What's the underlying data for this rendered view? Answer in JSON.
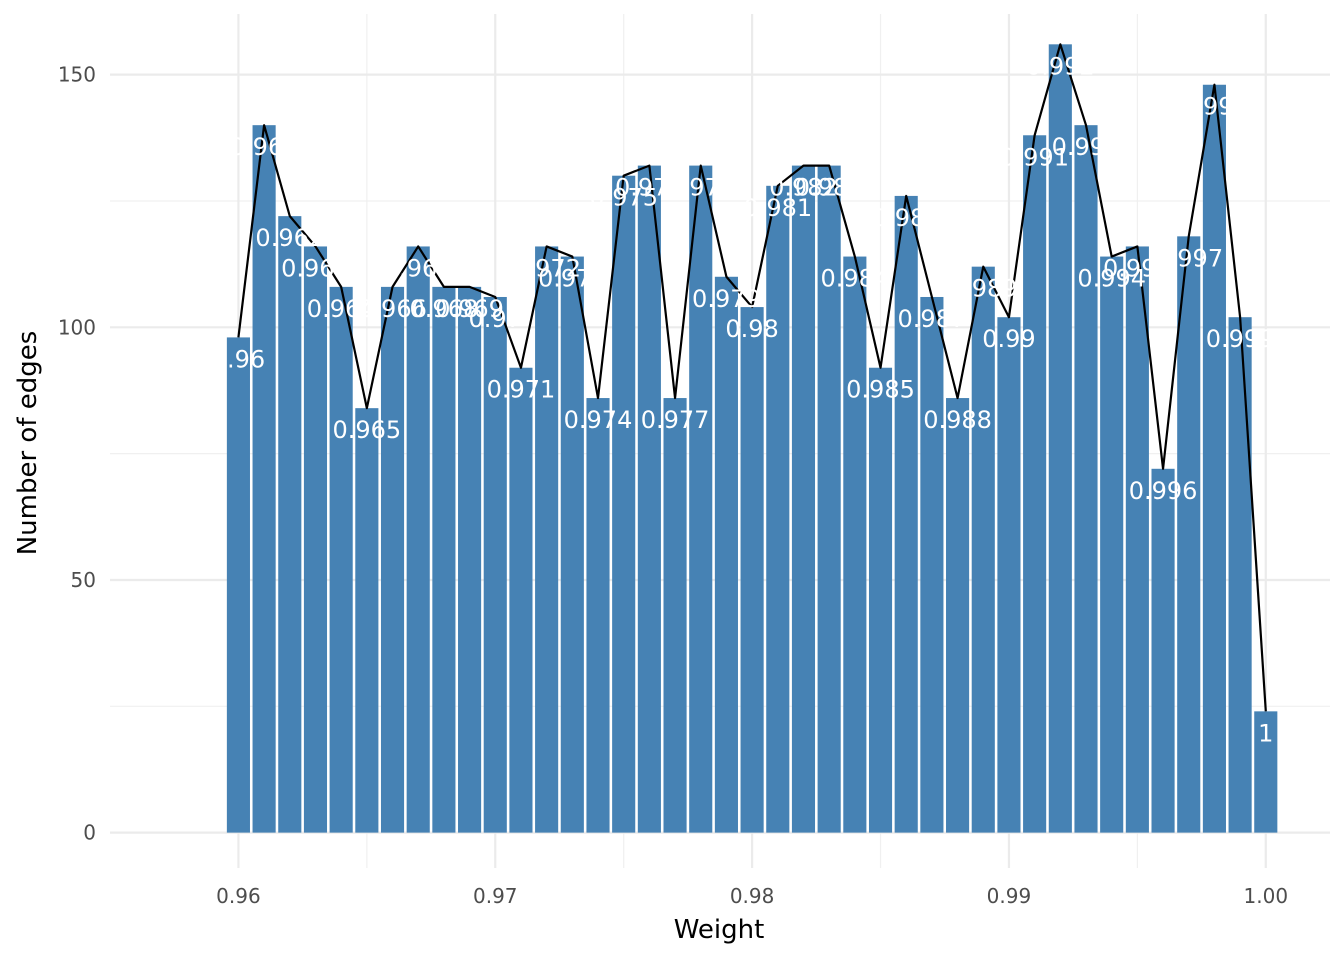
{
  "chart_data": {
    "type": "bar",
    "title": "",
    "xlabel": "Weight",
    "ylabel": "Number of edges",
    "xlim": [
      0.955,
      1.0025
    ],
    "ylim": [
      -7,
      162
    ],
    "x_ticks": [
      0.96,
      0.97,
      0.98,
      0.99,
      1.0
    ],
    "x_tick_labels": [
      "0.96",
      "0.97",
      "0.98",
      "0.99",
      "1.00"
    ],
    "y_ticks": [
      0,
      50,
      100,
      150
    ],
    "y_tick_labels": [
      "0",
      "50",
      "100",
      "150"
    ],
    "grid": true,
    "legend": "none",
    "bar_color": "#4682B4",
    "line_color": "#000000",
    "overlay": "line through bar tops",
    "x": [
      0.96,
      0.961,
      0.962,
      0.963,
      0.964,
      0.965,
      0.966,
      0.967,
      0.968,
      0.969,
      0.97,
      0.971,
      0.972,
      0.973,
      0.974,
      0.975,
      0.976,
      0.977,
      0.978,
      0.979,
      0.98,
      0.981,
      0.982,
      0.983,
      0.984,
      0.985,
      0.986,
      0.987,
      0.988,
      0.989,
      0.99,
      0.991,
      0.992,
      0.993,
      0.994,
      0.995,
      0.996,
      0.997,
      0.998,
      0.999,
      1.0
    ],
    "labels": [
      "0.96",
      "0.961",
      "0.962",
      "0.963",
      "0.964",
      "0.965",
      "0.966",
      "0.967",
      "0.968",
      "0.969",
      "0.97",
      "0.971",
      "0.972",
      "0.973",
      "0.974",
      "0.975",
      "0.976",
      "0.977",
      "0.978",
      "0.979",
      "0.98",
      "0.981",
      "0.982",
      "0.983",
      "0.984",
      "0.985",
      "0.986",
      "0.987",
      "0.988",
      "0.989",
      "0.99",
      "0.991",
      "0.992",
      "0.993",
      "0.994",
      "0.995",
      "0.996",
      "0.997",
      "0.998",
      "0.999",
      "1"
    ],
    "values": [
      98,
      140,
      122,
      116,
      108,
      84,
      108,
      116,
      108,
      108,
      106,
      92,
      116,
      114,
      86,
      130,
      132,
      86,
      132,
      110,
      104,
      128,
      132,
      132,
      114,
      92,
      126,
      106,
      86,
      112,
      102,
      138,
      156,
      140,
      114,
      116,
      72,
      118,
      148,
      102,
      24
    ]
  }
}
